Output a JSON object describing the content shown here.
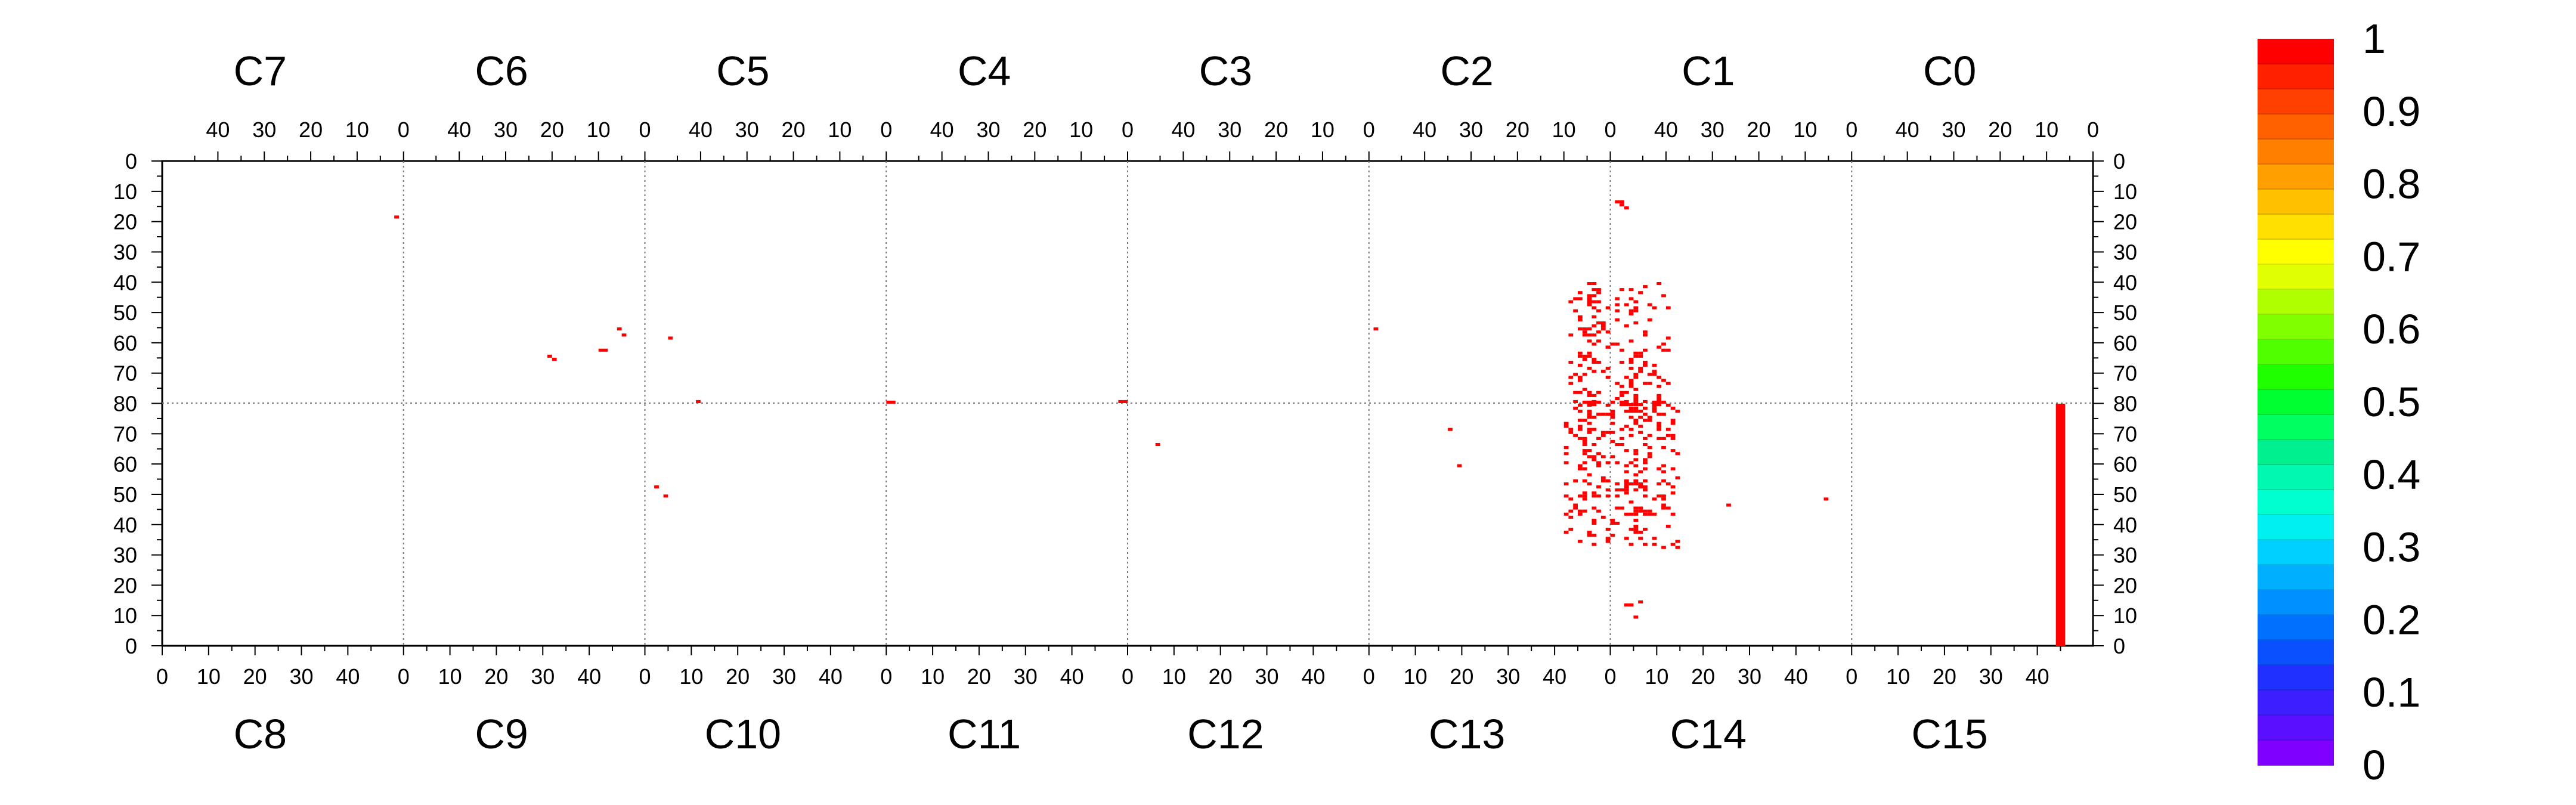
{
  "chart_data": {
    "type": "heatmap",
    "title": "",
    "xlabel": "",
    "ylabel": "",
    "top_chip_labels": [
      "C7",
      "C6",
      "C5",
      "C4",
      "C3",
      "C2",
      "C1",
      "C0"
    ],
    "bottom_chip_labels": [
      "C8",
      "C9",
      "C10",
      "C11",
      "C12",
      "C13",
      "C14",
      "C15"
    ],
    "top_tick_labels": [
      "40",
      "30",
      "20",
      "10",
      "0"
    ],
    "bottom_tick_labels": [
      "0",
      "10",
      "20",
      "30",
      "40"
    ],
    "y_tick_labels": [
      "0",
      "10",
      "20",
      "30",
      "40",
      "50",
      "60",
      "70",
      "80",
      "70",
      "60",
      "50",
      "40",
      "30",
      "20",
      "10",
      "0"
    ],
    "column_range": [
      0,
      52
    ],
    "row_range": [
      0,
      80
    ],
    "colorbar": {
      "ticks": [
        "0",
        "0.1",
        "0.2",
        "0.3",
        "0.4",
        "0.5",
        "0.6",
        "0.7",
        "0.8",
        "0.9",
        "1"
      ],
      "range": [
        0,
        1
      ],
      "colors": [
        "#7f00ff",
        "#5a10ff",
        "#3c1eff",
        "#2030ff",
        "#0a50ff",
        "#0070ff",
        "#0090ff",
        "#00b0ff",
        "#00d0ff",
        "#00f0f0",
        "#00ffd0",
        "#00f8b0",
        "#00f090",
        "#00ff60",
        "#00ff30",
        "#20ff00",
        "#50ff00",
        "#80ff00",
        "#b0ff00",
        "#e0ff00",
        "#ffff00",
        "#ffe000",
        "#ffc000",
        "#ffa000",
        "#ff8000",
        "#ff6000",
        "#ff4000",
        "#ff2000",
        "#ff0000"
      ]
    },
    "hit_color": "#ff0000",
    "hits": [
      {
        "chip": "C7",
        "col": 1,
        "row": 18,
        "value": 1
      },
      {
        "chip": "C6",
        "col": 5,
        "row": 55,
        "value": 1
      },
      {
        "chip": "C6",
        "col": 4,
        "row": 57,
        "value": 1
      },
      {
        "chip": "C6",
        "col": 8,
        "row": 62,
        "value": 1
      },
      {
        "chip": "C6",
        "col": 9,
        "row": 62,
        "value": 1
      },
      {
        "chip": "C6",
        "col": 20,
        "row": 64,
        "value": 1
      },
      {
        "chip": "C6",
        "col": 19,
        "row": 65,
        "value": 1
      },
      {
        "chip": "C5",
        "col": 46,
        "row": 58,
        "value": 1
      },
      {
        "chip": "C5",
        "col": 40,
        "row": 79,
        "value": 1
      },
      {
        "chip": "C4",
        "col": 0,
        "row": 79,
        "value": 1
      },
      {
        "chip": "C4",
        "col": 1,
        "row": 79,
        "value": 1
      },
      {
        "chip": "C11",
        "col": 0,
        "row": 80,
        "value": 1
      },
      {
        "chip": "C11",
        "col": 1,
        "row": 80,
        "value": 1
      },
      {
        "chip": "C10",
        "col": 2,
        "row": 52,
        "value": 1
      },
      {
        "chip": "C10",
        "col": 4,
        "row": 49,
        "value": 1
      },
      {
        "chip": "C12",
        "col": 6,
        "row": 66,
        "value": 1
      },
      {
        "chip": "C2",
        "col": 50,
        "row": 55,
        "value": 1
      },
      {
        "chip": "C13",
        "col": 17,
        "row": 71,
        "value": 1
      },
      {
        "chip": "C13",
        "col": 19,
        "row": 59,
        "value": 1
      },
      {
        "chip": "C14",
        "col": 25,
        "row": 46,
        "value": 1
      },
      {
        "chip": "C14",
        "col": 46,
        "row": 48,
        "value": 1
      },
      {
        "chip": "C1",
        "col": 49,
        "row": 14,
        "value": 1
      },
      {
        "chip": "C1",
        "col": 49,
        "row": 13,
        "value": 1
      },
      {
        "chip": "C1",
        "col": 50,
        "row": 13,
        "value": 1
      },
      {
        "chip": "C1",
        "col": 48,
        "row": 15,
        "value": 1
      }
    ],
    "cluster_top": {
      "chip": "C1",
      "col_min": 38,
      "col_max": 52,
      "row_min": 40,
      "row_max": 80,
      "density": 0.3
    },
    "cluster_top_left": {
      "chip": "C2",
      "col_min": 0,
      "col_max": 8,
      "row_min": 40,
      "row_max": 80,
      "density": 0.35
    },
    "cluster_bottom": {
      "chip": "C14",
      "col_min": 0,
      "col_max": 14,
      "row_min": 32,
      "row_max": 80,
      "density": 0.35
    },
    "cluster_bottom_left": {
      "chip": "C13",
      "col_min": 42,
      "col_max": 52,
      "row_min": 33,
      "row_max": 80,
      "density": 0.35
    },
    "bottom_hits": [
      {
        "chip": "C14",
        "col": 3,
        "row": 13,
        "value": 1
      },
      {
        "chip": "C14",
        "col": 4,
        "row": 13,
        "value": 1
      },
      {
        "chip": "C14",
        "col": 6,
        "row": 14,
        "value": 1
      },
      {
        "chip": "C14",
        "col": 5,
        "row": 9,
        "value": 1
      }
    ],
    "column_band": {
      "chip": "C15",
      "col_min": 44,
      "col_max": 45,
      "row_min": 0,
      "row_max": 80,
      "value": 1
    }
  }
}
